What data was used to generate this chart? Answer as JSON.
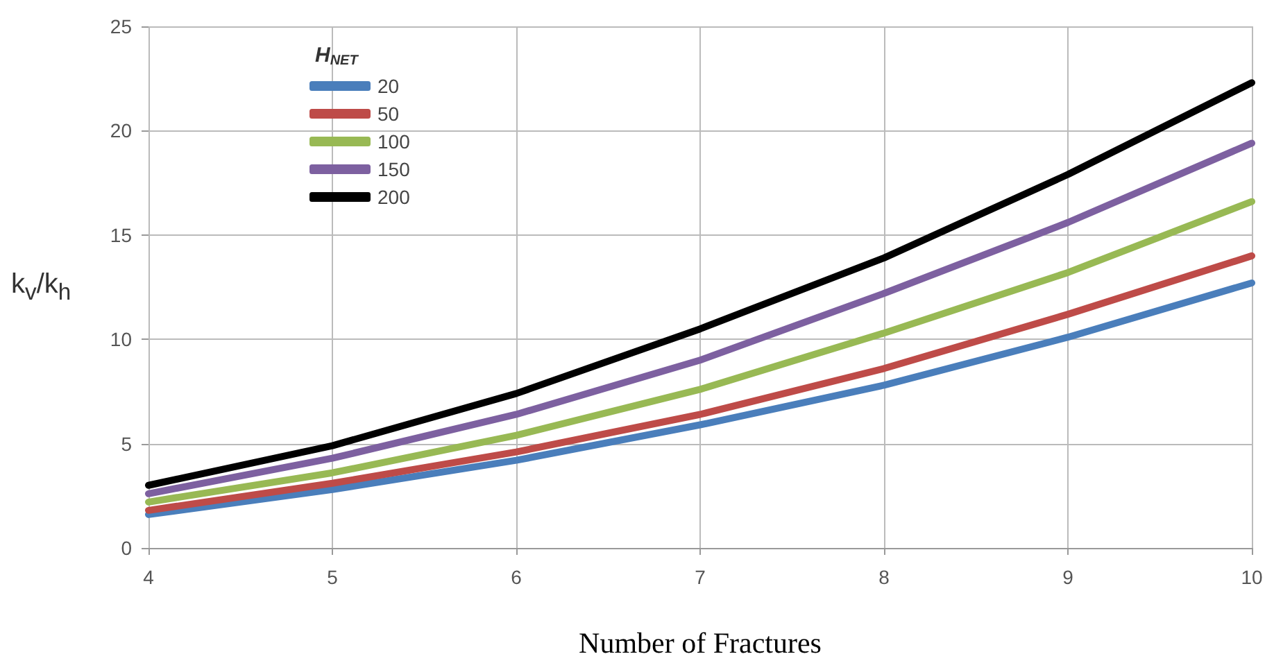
{
  "chart_data": {
    "type": "line",
    "xlabel": "Number of Fractures",
    "ylabel": "k$_{v}$/k$_{h}$",
    "legend_title": "H$_{NET}$",
    "x": [
      4,
      5,
      6,
      7,
      8,
      9,
      10
    ],
    "series": [
      {
        "name": "20",
        "color": "#4a7ebb",
        "values": [
          1.6,
          2.8,
          4.2,
          5.9,
          7.8,
          10.1,
          12.7
        ]
      },
      {
        "name": "50",
        "color": "#be4b48",
        "values": [
          1.8,
          3.1,
          4.6,
          6.4,
          8.6,
          11.2,
          14.0
        ]
      },
      {
        "name": "100",
        "color": "#98b954",
        "values": [
          2.2,
          3.6,
          5.4,
          7.6,
          10.3,
          13.2,
          16.6
        ]
      },
      {
        "name": "150",
        "color": "#7d60a0",
        "values": [
          2.6,
          4.3,
          6.4,
          9.0,
          12.2,
          15.6,
          19.4
        ]
      },
      {
        "name": "200",
        "color": "#000000",
        "values": [
          3.0,
          4.9,
          7.4,
          10.5,
          13.9,
          17.9,
          22.3
        ]
      }
    ],
    "xlim": [
      4,
      10
    ],
    "xticks": [
      4,
      5,
      6,
      7,
      8,
      9,
      10
    ],
    "ylim": [
      0,
      25
    ],
    "yticks": [
      0,
      5,
      10,
      15,
      20,
      25
    ],
    "grid": true,
    "legend": "top left",
    "marker": "none",
    "line_style": "solid"
  }
}
